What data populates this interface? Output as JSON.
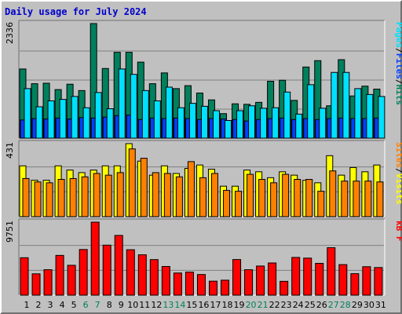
{
  "title": "Daily usage for July 2024",
  "colors": {
    "background": "#c0c0c0",
    "title": "#0000cc",
    "hits": "#00805c",
    "files": "#0040ff",
    "pages": "#00e0ff",
    "visits": "#ffff00",
    "sites": "#ff8000",
    "kbytes": "#ff0000",
    "weekday": "#000000",
    "weekend": "#00805c",
    "separator": "#000000"
  },
  "chart_data": [
    {
      "type": "bar",
      "panel": "hits",
      "ymax_label": "2336",
      "ylim": [
        0,
        2336
      ],
      "categories": [
        "1",
        "2",
        "3",
        "4",
        "5",
        "6",
        "7",
        "8",
        "9",
        "10",
        "11",
        "12",
        "13",
        "14",
        "15",
        "16",
        "17",
        "18",
        "19",
        "20",
        "21",
        "22",
        "23",
        "24",
        "25",
        "26",
        "27",
        "28",
        "29",
        "30",
        "31"
      ],
      "legend": [
        "Pages",
        "/",
        "Files",
        "/",
        "Hits"
      ],
      "series": [
        {
          "name": "Hits",
          "values": [
            1410,
            1110,
            1120,
            990,
            1100,
            970,
            2336,
            1420,
            1750,
            1750,
            1550,
            1110,
            1330,
            1010,
            1070,
            920,
            780,
            500,
            700,
            690,
            730,
            1160,
            1180,
            770,
            1450,
            1580,
            660,
            1600,
            860,
            1060,
            1000
          ]
        },
        {
          "name": "Files",
          "values": [
            370,
            400,
            390,
            410,
            390,
            420,
            410,
            430,
            460,
            470,
            380,
            410,
            400,
            410,
            400,
            380,
            400,
            390,
            380,
            350,
            380,
            400,
            410,
            380,
            400,
            380,
            400,
            410,
            400,
            400,
            410
          ]
        },
        {
          "name": "Pages",
          "values": [
            1010,
            640,
            760,
            790,
            850,
            620,
            930,
            600,
            1410,
            1300,
            970,
            760,
            1040,
            620,
            710,
            650,
            560,
            360,
            560,
            660,
            610,
            620,
            940,
            490,
            1090,
            610,
            1340,
            1340,
            1010,
            890,
            850
          ]
        }
      ]
    },
    {
      "type": "bar",
      "panel": "visits",
      "ymax_label": "431",
      "ylim": [
        0,
        431
      ],
      "categories": [
        "1",
        "2",
        "3",
        "4",
        "5",
        "6",
        "7",
        "8",
        "9",
        "10",
        "11",
        "12",
        "13",
        "14",
        "15",
        "16",
        "17",
        "18",
        "19",
        "20",
        "21",
        "22",
        "23",
        "24",
        "25",
        "26",
        "27",
        "28",
        "29",
        "30",
        "31"
      ],
      "legend": [
        "Sites",
        "/",
        "Visits"
      ],
      "series": [
        {
          "name": "Visits",
          "values": [
            300,
            215,
            215,
            300,
            275,
            260,
            275,
            300,
            300,
            431,
            328,
            245,
            300,
            255,
            285,
            305,
            280,
            180,
            180,
            275,
            265,
            230,
            265,
            245,
            215,
            200,
            360,
            245,
            290,
            265,
            305
          ]
        },
        {
          "name": "Sites",
          "values": [
            225,
            205,
            200,
            220,
            225,
            235,
            255,
            245,
            260,
            400,
            345,
            260,
            255,
            235,
            325,
            230,
            255,
            155,
            150,
            250,
            220,
            200,
            250,
            220,
            220,
            150,
            270,
            210,
            210,
            210,
            205
          ]
        }
      ]
    },
    {
      "type": "bar",
      "panel": "kbytes",
      "ymax_label": "9751",
      "ylim": [
        0,
        9751
      ],
      "categories": [
        "1",
        "2",
        "3",
        "4",
        "5",
        "6",
        "7",
        "8",
        "9",
        "10",
        "11",
        "12",
        "13",
        "14",
        "15",
        "16",
        "17",
        "18",
        "19",
        "20",
        "21",
        "22",
        "23",
        "24",
        "25",
        "26",
        "27",
        "28",
        "29",
        "30",
        "31"
      ],
      "legend": [
        "kB F"
      ],
      "series": [
        {
          "name": "kB F",
          "values": [
            5000,
            2850,
            3400,
            5310,
            3990,
            6100,
            9751,
            6680,
            7980,
            6070,
            5390,
            4750,
            3830,
            2960,
            3080,
            2760,
            1870,
            2000,
            4760,
            3400,
            3890,
            4300,
            1850,
            5040,
            4950,
            4250,
            6340,
            4080,
            2870,
            3800,
            3690
          ]
        }
      ]
    }
  ],
  "weekend_days": [
    "6",
    "7",
    "13",
    "14",
    "20",
    "21",
    "27",
    "28"
  ]
}
